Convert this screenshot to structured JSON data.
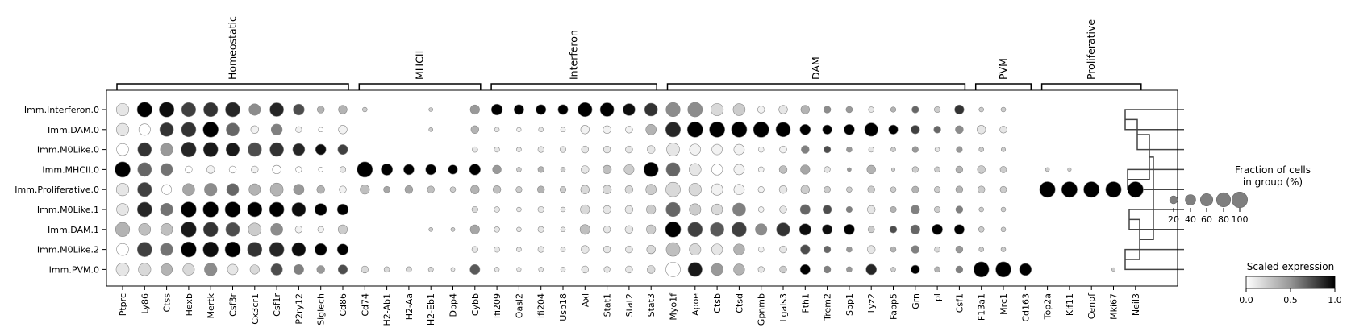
{
  "chart_data": {
    "type": "dotplot",
    "genes": [
      "Ptprc",
      "Ly86",
      "Ctss",
      "Hexb",
      "Mertk",
      "Csf3r",
      "Cx3cr1",
      "Csf1r",
      "P2ry12",
      "Siglech",
      "Cd86",
      "Cd74",
      "H2-Ab1",
      "H2-Aa",
      "H2-Eb1",
      "Dpp4",
      "Cybb",
      "Ifi209",
      "Oasl2",
      "Ifi204",
      "Usp18",
      "Axl",
      "Stat1",
      "Stat2",
      "Stat3",
      "Myo1f",
      "Apoe",
      "Ctsb",
      "Ctsd",
      "Gpnmb",
      "Lgals3",
      "Fth1",
      "Trem2",
      "Spp1",
      "Lyz2",
      "Fabp5",
      "Grn",
      "Lpl",
      "Csf1",
      "F13a1",
      "Mrc1",
      "Cd163",
      "Top2a",
      "Kif11",
      "Cenpf",
      "Mki67",
      "Neil3"
    ],
    "groups": [
      "Imm.Interferon.0",
      "Imm.DAM.0",
      "Imm.M0Like.0",
      "Imm.MHCII.0",
      "Imm.Proliferative.0",
      "Imm.M0Like.1",
      "Imm.DAM.1",
      "Imm.M0Like.2",
      "Imm.PVM.0"
    ],
    "gene_groups": [
      {
        "label": "Homeostatic",
        "start": 0,
        "end": 10
      },
      {
        "label": "MHCII",
        "start": 11,
        "end": 16
      },
      {
        "label": "Interferon",
        "start": 17,
        "end": 24
      },
      {
        "label": "DAM",
        "start": 25,
        "end": 38
      },
      {
        "label": "PVM",
        "start": 39,
        "end": 41
      },
      {
        "label": "Proliferative",
        "start": 42,
        "end": 46
      }
    ],
    "fraction_pct": [
      [
        60,
        90,
        90,
        80,
        80,
        85,
        50,
        75,
        45,
        15,
        25,
        5,
        0,
        0,
        3,
        0,
        30,
        45,
        35,
        35,
        35,
        80,
        75,
        55,
        65,
        80,
        85,
        60,
        55,
        15,
        25,
        25,
        15,
        12,
        8,
        7,
        14,
        10,
        30,
        5,
        5,
        0,
        0,
        0,
        0,
        0,
        0
      ],
      [
        60,
        50,
        75,
        85,
        95,
        65,
        20,
        45,
        10,
        5,
        25,
        0,
        0,
        0,
        3,
        0,
        20,
        5,
        4,
        5,
        5,
        25,
        20,
        15,
        40,
        90,
        98,
        98,
        98,
        99,
        85,
        40,
        30,
        40,
        70,
        30,
        25,
        15,
        20,
        25,
        15,
        0,
        0,
        0,
        0,
        0,
        0
      ],
      [
        55,
        75,
        60,
        90,
        85,
        70,
        75,
        75,
        55,
        40,
        35,
        0,
        0,
        0,
        0,
        0,
        8,
        7,
        5,
        10,
        10,
        15,
        15,
        15,
        20,
        65,
        45,
        40,
        40,
        8,
        15,
        20,
        14,
        8,
        7,
        5,
        10,
        5,
        10,
        5,
        4,
        0,
        0,
        0,
        0,
        0,
        0
      ],
      [
        97,
        75,
        55,
        15,
        20,
        15,
        15,
        25,
        10,
        5,
        10,
        97,
        50,
        40,
        40,
        30,
        45,
        25,
        5,
        10,
        5,
        20,
        25,
        35,
        85,
        75,
        55,
        45,
        40,
        8,
        20,
        30,
        10,
        3,
        25,
        2,
        10,
        8,
        15,
        20,
        12,
        0,
        3,
        2,
        0,
        0,
        0
      ],
      [
        60,
        80,
        35,
        55,
        60,
        55,
        50,
        65,
        40,
        20,
        15,
        30,
        12,
        20,
        15,
        8,
        25,
        20,
        10,
        15,
        10,
        25,
        25,
        20,
        40,
        85,
        60,
        50,
        40,
        10,
        20,
        25,
        12,
        8,
        15,
        8,
        14,
        10,
        15,
        15,
        12,
        0,
        100,
        100,
        100,
        100,
        100
      ],
      [
        55,
        85,
        60,
        95,
        95,
        95,
        85,
        85,
        75,
        55,
        45,
        0,
        0,
        0,
        0,
        0,
        10,
        8,
        5,
        10,
        5,
        30,
        20,
        20,
        30,
        80,
        50,
        45,
        65,
        8,
        15,
        35,
        25,
        10,
        20,
        10,
        25,
        10,
        15,
        5,
        5,
        0,
        0,
        0,
        0,
        0,
        0
      ],
      [
        80,
        55,
        55,
        95,
        85,
        75,
        65,
        55,
        15,
        10,
        30,
        0,
        0,
        0,
        3,
        3,
        30,
        8,
        5,
        10,
        5,
        35,
        15,
        20,
        30,
        97,
        85,
        75,
        85,
        50,
        70,
        50,
        35,
        40,
        12,
        15,
        30,
        40,
        35,
        8,
        5,
        0,
        0,
        0,
        0,
        0,
        0
      ],
      [
        55,
        85,
        60,
        95,
        95,
        95,
        85,
        85,
        75,
        55,
        45,
        0,
        0,
        0,
        0,
        0,
        10,
        8,
        5,
        10,
        5,
        20,
        15,
        15,
        25,
        75,
        50,
        45,
        45,
        8,
        15,
        30,
        14,
        8,
        20,
        8,
        20,
        8,
        15,
        5,
        5,
        0,
        0,
        0,
        0,
        0,
        0
      ],
      [
        65,
        60,
        50,
        50,
        60,
        40,
        30,
        50,
        35,
        20,
        30,
        15,
        8,
        8,
        6,
        3,
        35,
        5,
        4,
        5,
        5,
        15,
        10,
        15,
        20,
        85,
        80,
        55,
        45,
        10,
        15,
        35,
        15,
        8,
        40,
        5,
        25,
        8,
        15,
        95,
        95,
        55,
        0,
        0,
        0,
        2,
        0
      ]
    ],
    "scaled_expression": [
      [
        0.1,
        1.0,
        0.95,
        0.75,
        0.8,
        0.85,
        0.45,
        0.85,
        0.7,
        0.3,
        0.3,
        0.2,
        0,
        0,
        0.2,
        0,
        0.4,
        1.0,
        1.0,
        1.0,
        1.0,
        1.0,
        1.0,
        0.95,
        0.8,
        0.45,
        0.45,
        0.15,
        0.2,
        0.05,
        0.1,
        0.3,
        0.45,
        0.4,
        0.1,
        0.3,
        0.6,
        0.2,
        0.8,
        0.2,
        0.2,
        0,
        0,
        0,
        0,
        0,
        0
      ],
      [
        0.1,
        0.0,
        0.8,
        0.8,
        1.0,
        0.6,
        0.05,
        0.5,
        0.05,
        0.0,
        0.05,
        0,
        0,
        0,
        0.2,
        0,
        0.3,
        0.1,
        0.05,
        0.1,
        0.05,
        0.05,
        0.05,
        0.05,
        0.3,
        0.85,
        1.0,
        1.0,
        1.0,
        1.0,
        1.0,
        1.0,
        1.0,
        1.0,
        1.0,
        1.0,
        0.75,
        0.6,
        0.45,
        0.1,
        0.1,
        0,
        0,
        0,
        0,
        0,
        0
      ],
      [
        0.0,
        0.8,
        0.4,
        0.85,
        0.9,
        0.9,
        0.7,
        0.8,
        0.85,
        0.95,
        0.75,
        0,
        0,
        0,
        0,
        0,
        0.1,
        0.1,
        0.1,
        0.1,
        0.1,
        0.1,
        0.1,
        0.1,
        0.1,
        0.1,
        0.05,
        0.05,
        0.05,
        0.05,
        0.05,
        0.5,
        0.7,
        0.4,
        0.1,
        0.2,
        0.4,
        0.1,
        0.4,
        0.2,
        0.2,
        0,
        0,
        0,
        0,
        0,
        0
      ],
      [
        1.0,
        0.6,
        0.55,
        0.0,
        0.05,
        0.0,
        0.05,
        0.0,
        0.0,
        0.0,
        0.1,
        1.0,
        1.0,
        1.0,
        1.0,
        1.0,
        1.0,
        0.4,
        0.2,
        0.3,
        0.2,
        0.1,
        0.25,
        0.2,
        1.0,
        0.6,
        0.1,
        0.0,
        0.05,
        0.05,
        0.25,
        0.35,
        0.1,
        0.4,
        0.3,
        0.2,
        0.2,
        0.2,
        0.3,
        0.2,
        0.2,
        0,
        0.2,
        0.2,
        0,
        0,
        0
      ],
      [
        0.1,
        0.75,
        0.0,
        0.35,
        0.45,
        0.6,
        0.3,
        0.3,
        0.4,
        0.3,
        0.05,
        0.25,
        0.35,
        0.35,
        0.25,
        0.2,
        0.3,
        0.25,
        0.2,
        0.3,
        0.2,
        0.15,
        0.15,
        0.15,
        0.2,
        0.15,
        0.15,
        0.05,
        0.05,
        0.05,
        0.1,
        0.2,
        0.2,
        0.2,
        0.2,
        0.2,
        0.3,
        0.2,
        0.3,
        0.2,
        0.2,
        0,
        1.0,
        1.0,
        1.0,
        1.0,
        1.0
      ],
      [
        0.1,
        0.85,
        0.55,
        1.0,
        1.0,
        1.0,
        1.0,
        1.0,
        0.95,
        1.0,
        1.0,
        0,
        0,
        0,
        0,
        0,
        0.15,
        0.1,
        0.1,
        0.1,
        0.1,
        0.15,
        0.1,
        0.1,
        0.2,
        0.6,
        0.2,
        0.15,
        0.5,
        0.05,
        0.1,
        0.6,
        0.7,
        0.5,
        0.1,
        0.3,
        0.5,
        0.2,
        0.5,
        0.2,
        0.2,
        0,
        0,
        0,
        0,
        0,
        0
      ],
      [
        0.3,
        0.25,
        0.25,
        0.9,
        0.8,
        0.7,
        0.2,
        0.45,
        0.05,
        0.05,
        0.2,
        0,
        0,
        0,
        0.2,
        0.2,
        0.35,
        0.1,
        0.1,
        0.1,
        0.1,
        0.25,
        0.1,
        0.1,
        0.2,
        1.0,
        0.75,
        0.65,
        0.75,
        0.45,
        0.8,
        0.95,
        0.95,
        1.0,
        0.2,
        0.7,
        0.6,
        1.0,
        1.0,
        0.2,
        0.2,
        0,
        0,
        0,
        0,
        0,
        0
      ],
      [
        0.0,
        0.75,
        0.55,
        1.0,
        0.95,
        1.0,
        0.8,
        0.85,
        0.95,
        1.0,
        1.0,
        0,
        0,
        0,
        0,
        0,
        0.1,
        0.1,
        0.1,
        0.1,
        0.1,
        0.1,
        0.1,
        0.1,
        0.15,
        0.25,
        0.15,
        0.1,
        0.3,
        0.05,
        0.1,
        0.7,
        0.6,
        0.4,
        0.1,
        0.3,
        0.5,
        0.15,
        0.4,
        0.2,
        0.2,
        0,
        0,
        0,
        0,
        0,
        0
      ],
      [
        0.1,
        0.15,
        0.3,
        0.15,
        0.45,
        0.1,
        0.15,
        0.7,
        0.5,
        0.4,
        0.7,
        0.15,
        0.15,
        0.15,
        0.15,
        0.1,
        0.65,
        0.1,
        0.1,
        0.1,
        0.1,
        0.1,
        0.1,
        0.1,
        0.15,
        0.0,
        0.9,
        0.4,
        0.3,
        0.1,
        0.2,
        1.0,
        0.5,
        0.4,
        0.85,
        0.2,
        1.0,
        0.3,
        0.5,
        1.0,
        1.0,
        1.0,
        0,
        0,
        0,
        0.2,
        0
      ]
    ],
    "legend_size": {
      "title_line1": "Fraction of cells",
      "title_line2": "in group (%)",
      "ticks": [
        20,
        40,
        60,
        80,
        100
      ]
    },
    "legend_color": {
      "title": "Scaled expression",
      "ticks": [
        "0.0",
        "0.5",
        "1.0"
      ],
      "colormap": "Greys"
    }
  }
}
